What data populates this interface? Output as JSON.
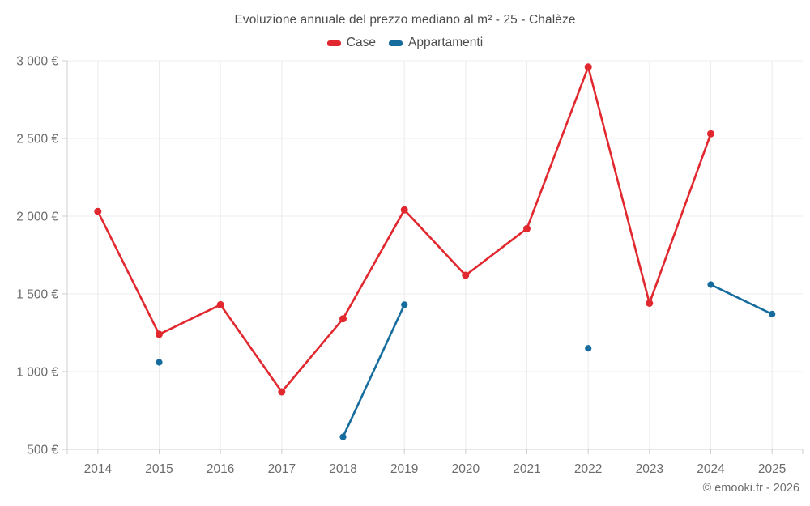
{
  "chart": {
    "title": "Evoluzione annuale del prezzo mediano al m² - 25 - Chalèze"
  },
  "footer": {
    "copyright": "© emooki.fr - 2026"
  },
  "colors": {
    "case_red": "#e0282e",
    "appartamenti_blue": "#166d9d",
    "grid_line": "#ececec",
    "axis_line": "#cfcfcf",
    "axis_label": "#6b6b6b",
    "title_text": "#4c4c4c"
  },
  "chart_data": {
    "type": "line",
    "title": "Evoluzione annuale del prezzo mediano al m² - 25 - Chalèze",
    "xlabel": "",
    "ylabel": "",
    "categories": [
      "2014",
      "2015",
      "2016",
      "2017",
      "2018",
      "2019",
      "2020",
      "2021",
      "2022",
      "2023",
      "2024",
      "2025"
    ],
    "series": [
      {
        "name": "Case",
        "color": "#e0282e",
        "values": [
          2030,
          1240,
          1430,
          870,
          1340,
          2040,
          1620,
          1920,
          2960,
          1440,
          2530,
          null
        ]
      },
      {
        "name": "Appartamenti",
        "color": "#166d9d",
        "values": [
          null,
          1060,
          null,
          null,
          580,
          1430,
          null,
          null,
          1150,
          null,
          1560,
          1370
        ]
      }
    ],
    "ylim": [
      500,
      3000
    ],
    "y_ticks": [
      500,
      1000,
      1500,
      2000,
      2500,
      3000
    ],
    "y_tick_labels": [
      "500 €",
      "1 000 €",
      "1 500 €",
      "2 000 €",
      "2 500 €",
      "3 000 €"
    ],
    "grid": true,
    "legend_position": "top",
    "annotations": [
      "© emooki.fr - 2026"
    ]
  }
}
